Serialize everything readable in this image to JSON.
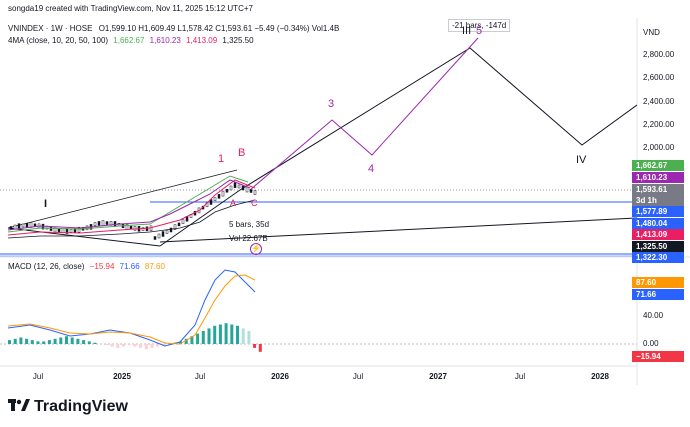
{
  "watermark": "songda19 created with TradingView.com, Nov 11, 2025 15:12 UTC+7",
  "symbol": "VNINDEX · 1W · HOSE",
  "ohlc": "O1,599.10 H1,609.49 L1,578.42 C1,593.61 −5.49 (−0.34%) Vol1.4B",
  "ma_label": "4MA (close, 10, 20, 50, 100)",
  "ma_values": [
    "1,662.67",
    "1,610.23",
    "1,413.09",
    "1,325.50"
  ],
  "ma_colors": [
    "#4caf50",
    "#9c27b0",
    "#e91e63",
    "#131722"
  ],
  "currency": "VND",
  "price_ticks": [
    "2,800.00",
    "2,600.00",
    "2,400.00",
    "2,200.00",
    "2,000.00"
  ],
  "price_tags": [
    {
      "label": "1,662.67",
      "color": "#4caf50"
    },
    {
      "label": "1,610.23",
      "color": "#9c27b0"
    },
    {
      "label": "1,593.61",
      "color": "#787b86"
    },
    {
      "label": "3d 1h",
      "color": "#787b86"
    },
    {
      "label": "1,577.89",
      "color": "#2962ff"
    },
    {
      "label": "1,480.04",
      "color": "#2962ff"
    },
    {
      "label": "1,413.09",
      "color": "#e91e63"
    },
    {
      "label": "1,325.50",
      "color": "#131722"
    },
    {
      "label": "1,322.30",
      "color": "#2962ff"
    }
  ],
  "range_box": "-21 bars, -147d",
  "waves": {
    "w1": "1",
    "wB": "B",
    "w3": "3",
    "w4": "4",
    "w5": "5",
    "wI": "I",
    "wIII": "III",
    "wIV": "IV",
    "wA": "A",
    "wC": "C"
  },
  "bars_tip": "5 bars, 35d",
  "vol_tip": "Vol 22.67B",
  "macd": {
    "label": "MACD (12, 26, close)",
    "values": [
      "−15.94",
      "71.66",
      "87.60"
    ],
    "colors": [
      "#f23645",
      "#2962ff",
      "#ff9800"
    ],
    "ticks": [
      "40.00",
      "0.00"
    ],
    "tags": [
      {
        "label": "87.60",
        "color": "#ff9800"
      },
      {
        "label": "71.66",
        "color": "#2962ff"
      },
      {
        "label": "−15.94",
        "color": "#f23645"
      }
    ]
  },
  "time_axis": [
    {
      "label": "Jul",
      "year": false
    },
    {
      "label": "2025",
      "year": true
    },
    {
      "label": "Jul",
      "year": false
    },
    {
      "label": "2026",
      "year": true
    },
    {
      "label": "Jul",
      "year": false
    },
    {
      "label": "2027",
      "year": true
    },
    {
      "label": "Jul",
      "year": false
    },
    {
      "label": "2028",
      "year": true
    }
  ],
  "brand": "TradingView"
}
